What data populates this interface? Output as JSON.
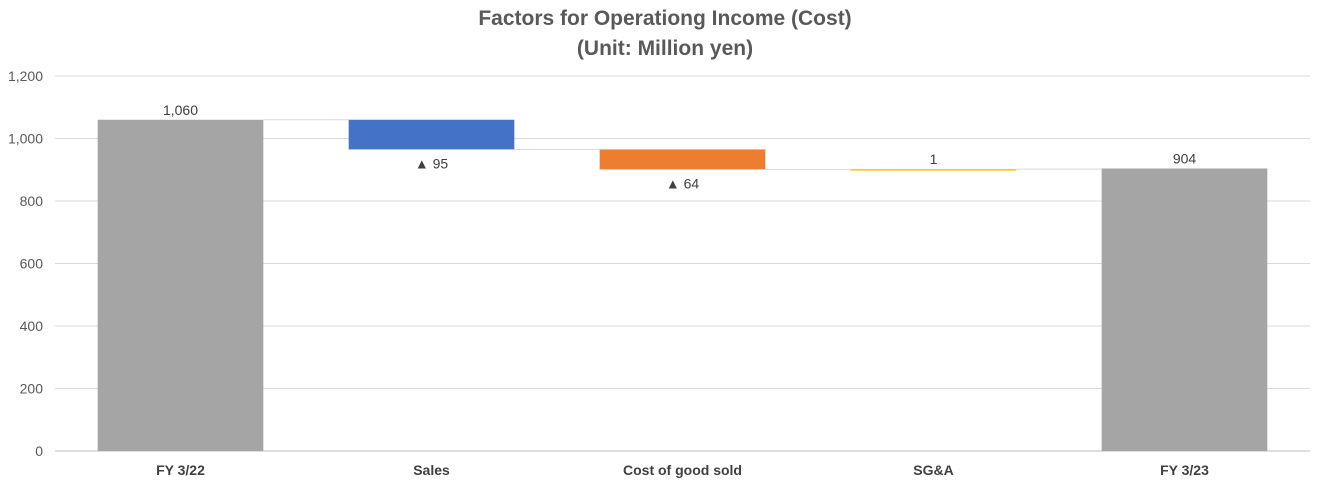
{
  "chart_data": {
    "type": "bar",
    "subtype": "waterfall",
    "title": "Factors for Operationg Income (Cost)",
    "subtitle": "(Unit: Million yen)",
    "categories": [
      "FY 3/22",
      "Sales",
      "Cost of good sold",
      "SG&A",
      "FY 3/23"
    ],
    "bars": [
      {
        "kind": "total",
        "start": 0,
        "end": 1060,
        "label": "1,060",
        "color": "#a5a5a5"
      },
      {
        "kind": "decrease",
        "start": 1060,
        "end": 965,
        "label": "▲ 95",
        "color": "#4472c4"
      },
      {
        "kind": "decrease",
        "start": 965,
        "end": 901,
        "label": "▲ 64",
        "color": "#ed7d31"
      },
      {
        "kind": "increase",
        "start": 901,
        "end": 902,
        "label": "1",
        "color": "#ffc000"
      },
      {
        "kind": "total",
        "start": 0,
        "end": 904,
        "label": "904",
        "color": "#a5a5a5"
      }
    ],
    "yticks": [
      "0",
      "200",
      "400",
      "600",
      "800",
      "1,000",
      "1,200"
    ],
    "ylim": [
      0,
      1200
    ],
    "grid": true,
    "legend": "none"
  }
}
